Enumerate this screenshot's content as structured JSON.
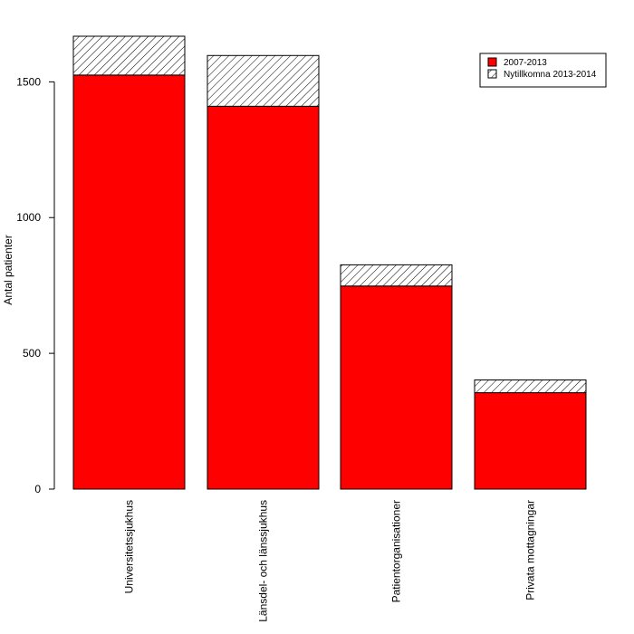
{
  "chart_data": {
    "type": "bar",
    "stacked": true,
    "title": "",
    "xlabel": "",
    "ylabel": "Antal patienter",
    "categories": [
      "Universitetssjukhus",
      "Länsdel- och länssjukhus",
      "Patientorganisationer",
      "Privata mottagningar"
    ],
    "series": [
      {
        "name": "2007-2013",
        "values": [
          1525,
          1410,
          748,
          355
        ],
        "color": "#ff0000",
        "fill": "solid"
      },
      {
        "name": "Nytillkomna 2013-2014",
        "values": [
          143,
          187,
          78,
          47
        ],
        "color": "#ffffff",
        "fill": "hatched"
      }
    ],
    "ylim": [
      0,
      1668
    ],
    "yticks": [
      0,
      500,
      1000,
      1500
    ],
    "grid": false,
    "legend_position": "top-right"
  }
}
